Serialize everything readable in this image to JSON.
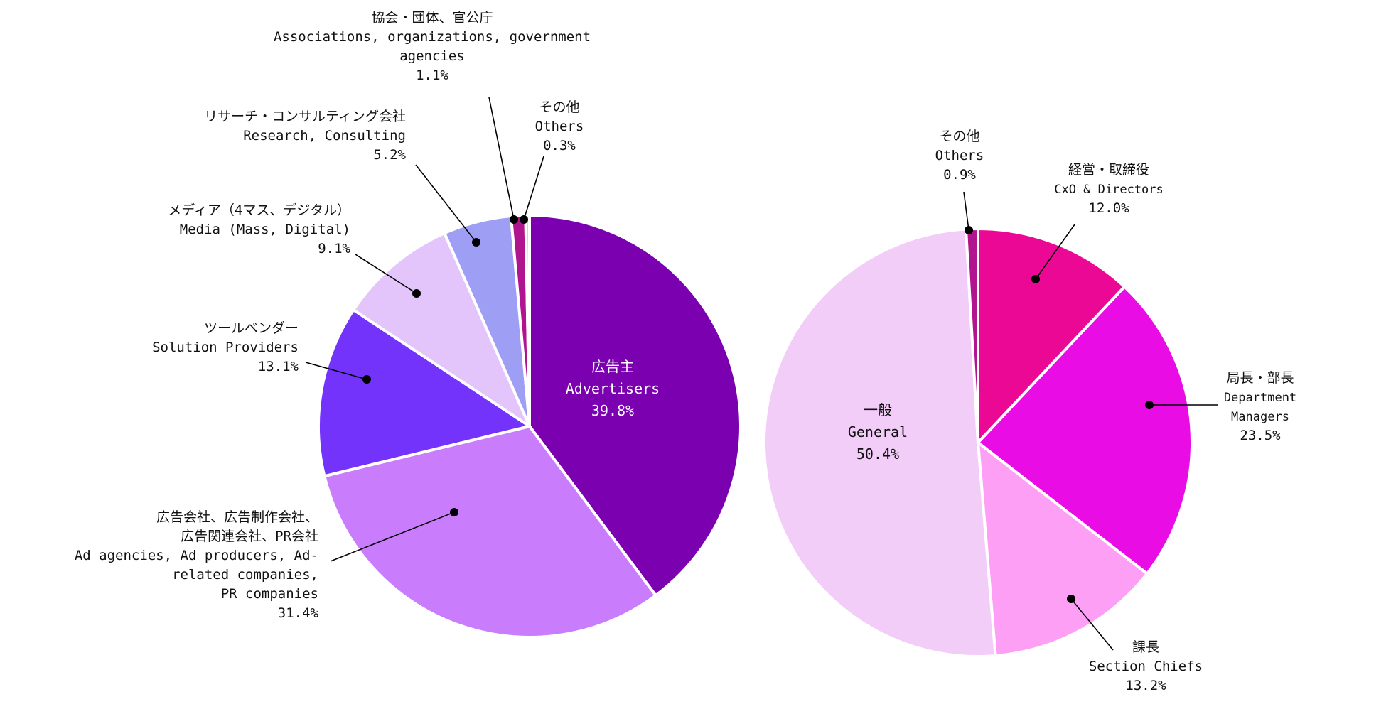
{
  "colors": {
    "leader": "#000000",
    "separator": "#ffffff"
  },
  "chart_data": [
    {
      "type": "pie",
      "start_angle_deg": 0,
      "direction": "clockwise",
      "slices": [
        {
          "label_ja": "広告主",
          "label_en": "Advertisers",
          "value": 39.8,
          "pct_text": "39.8%",
          "color": "#7a00b0"
        },
        {
          "label_ja": [
            "広告会社、広告制作会社、",
            "広告関連会社、PR会社"
          ],
          "label_en": [
            "Ad agencies, Ad producers, Ad-",
            "related companies,",
            "PR companies"
          ],
          "value": 31.4,
          "pct_text": "31.4%",
          "color": "#c97cfc"
        },
        {
          "label_ja": "ツールベンダー",
          "label_en": "Solution Providers",
          "value": 13.1,
          "pct_text": "13.1%",
          "color": "#7433fb"
        },
        {
          "label_ja": "メディア（4マス、デジタル）",
          "label_en": "Media (Mass, Digital)",
          "value": 9.1,
          "pct_text": "9.1%",
          "color": "#e3c5fc"
        },
        {
          "label_ja": "リサーチ・コンサルティング会社",
          "label_en": "Research, Consulting",
          "value": 5.2,
          "pct_text": "5.2%",
          "color": "#9d9ef4"
        },
        {
          "label_ja": "協会・団体、官公庁",
          "label_en": [
            "Associations, organizations, government",
            "agencies"
          ],
          "value": 1.1,
          "pct_text": "1.1%",
          "color": "#b0148e"
        },
        {
          "label_ja": "その他",
          "label_en": "Others",
          "value": 0.3,
          "pct_text": "0.3%",
          "color": "#e3c5fc"
        }
      ]
    },
    {
      "type": "pie",
      "start_angle_deg": 0,
      "direction": "clockwise",
      "slices": [
        {
          "label_ja": "経営・取締役",
          "label_en": "CxO & Directors",
          "value": 12.0,
          "pct_text": "12.0%",
          "color": "#ea0895"
        },
        {
          "label_ja": "局長・部長",
          "label_en": [
            "Department",
            "Managers"
          ],
          "value": 23.5,
          "pct_text": "23.5%",
          "color": "#e90ce5"
        },
        {
          "label_ja": "課長",
          "label_en": "Section Chiefs",
          "value": 13.2,
          "pct_text": "13.2%",
          "color": "#fda0f5"
        },
        {
          "label_ja": "一般",
          "label_en": "General",
          "value": 50.4,
          "pct_text": "50.4%",
          "color": "#f2cdf8"
        },
        {
          "label_ja": "その他",
          "label_en": "Others",
          "value": 0.9,
          "pct_text": "0.9%",
          "color": "#b0148e"
        }
      ]
    }
  ]
}
